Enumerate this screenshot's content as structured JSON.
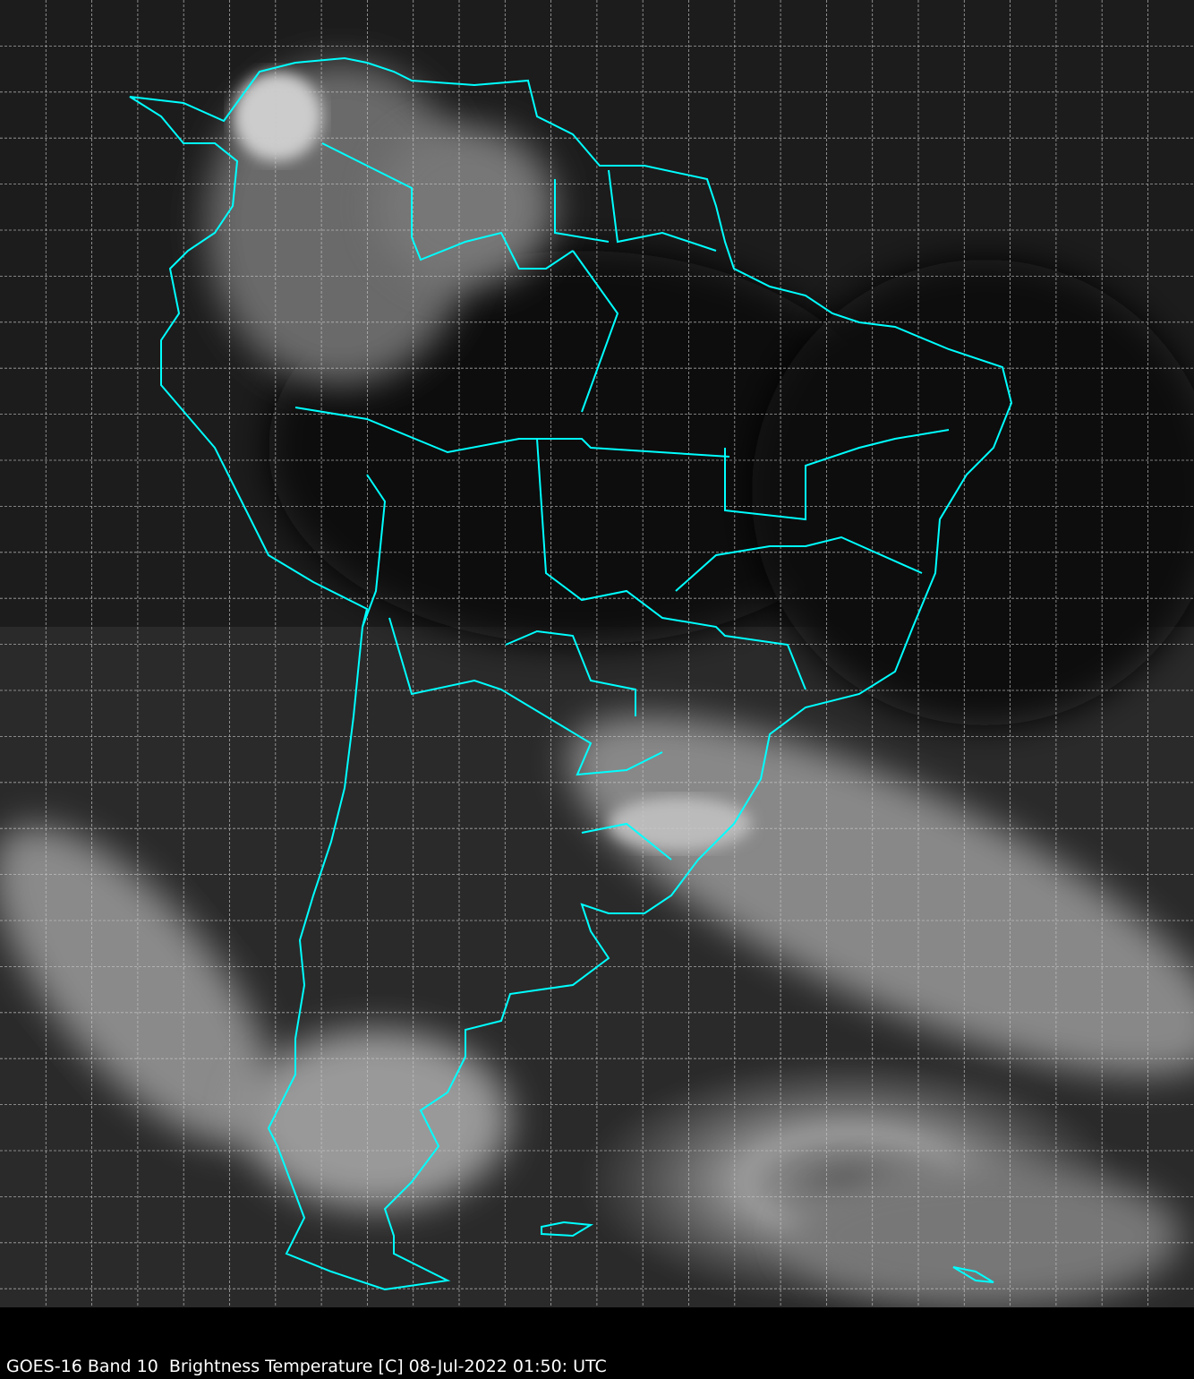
{
  "caption": "GOES-16 Band 10  Brightness Temperature [C] 08-Jul-2022 01:50: UTC",
  "colors": {
    "coastline": "#00ffff",
    "grid": "#c8c8c8",
    "background": "#000000"
  }
}
